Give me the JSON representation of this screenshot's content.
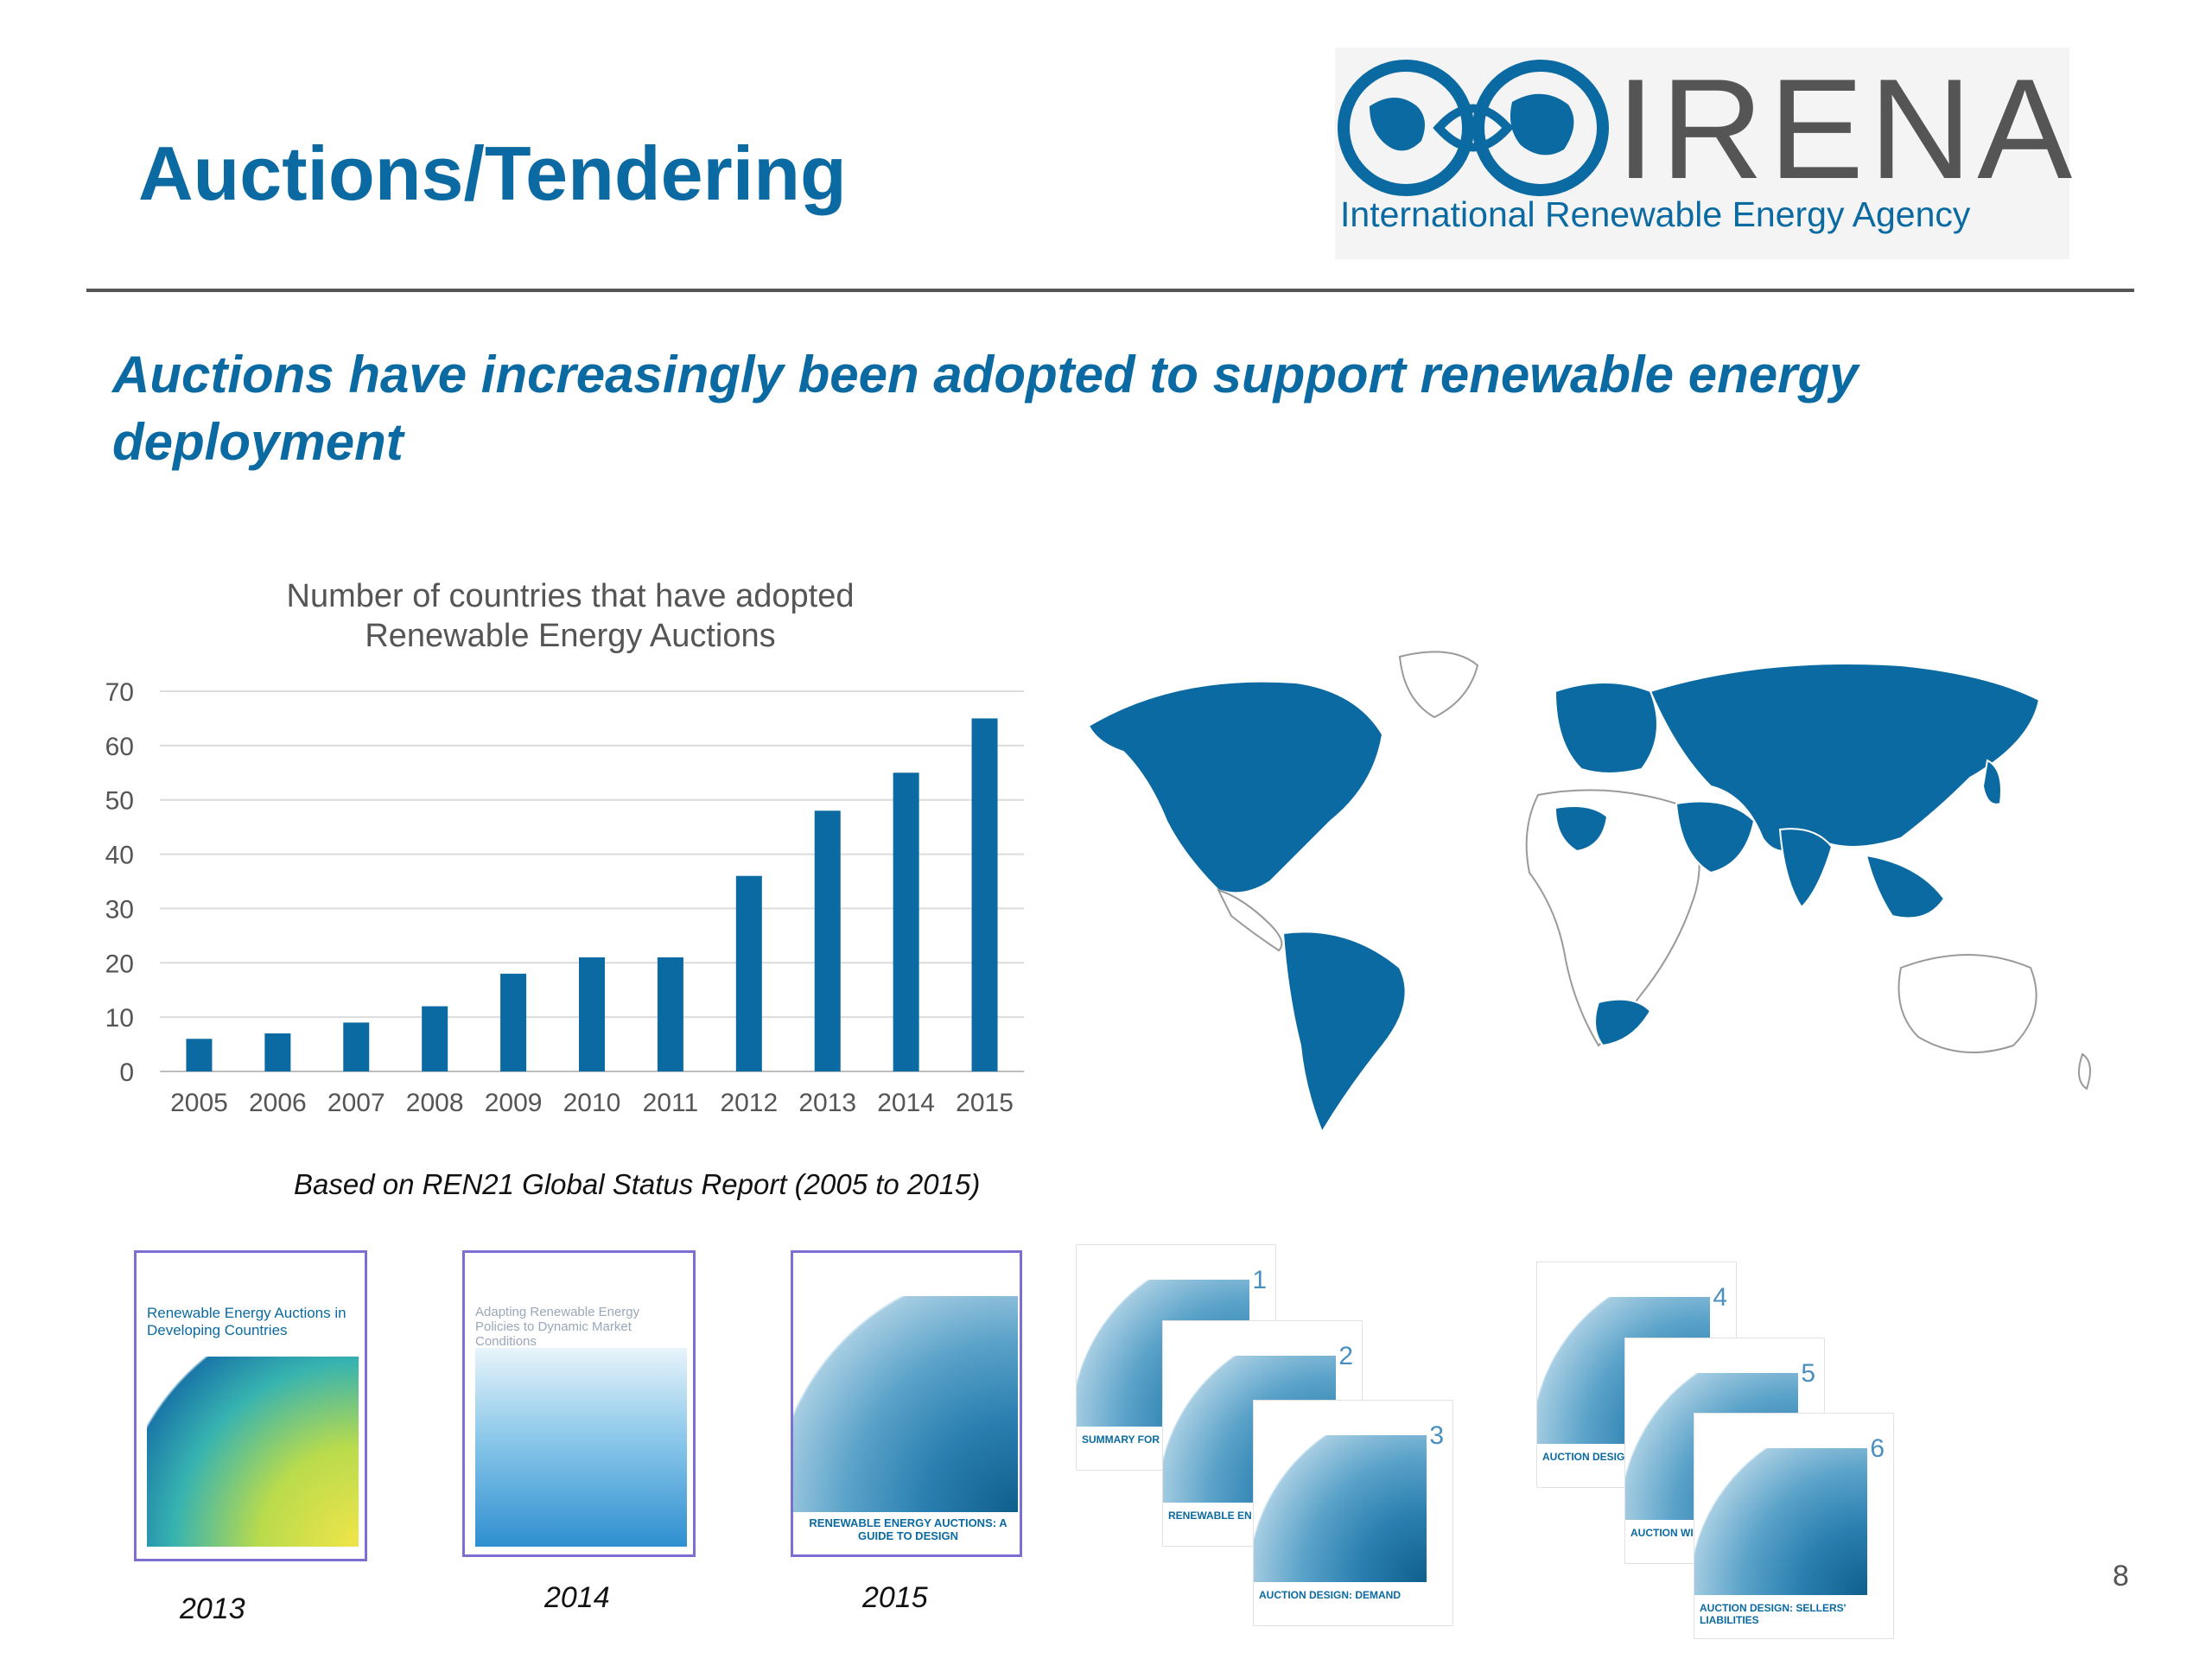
{
  "slide": {
    "title": "Auctions/Tendering",
    "subtitle": "Auctions have increasingly been adopted to support renewable energy deployment",
    "source_note": "Based on REN21 Global Status Report (2005 to 2015)",
    "page_number": "8"
  },
  "logo": {
    "name": "IRENA",
    "tagline": "International Renewable Energy Agency",
    "color": "#0a6aa1"
  },
  "colors": {
    "accent": "#0a6aa1",
    "bar": "#0b6aa2",
    "rule": "#555555"
  },
  "chart_data": {
    "type": "bar",
    "title": "Number of countries that have adopted Renewable Energy Auctions",
    "title_lines": [
      "Number of countries that have adopted",
      "Renewable Energy Auctions"
    ],
    "categories": [
      "2005",
      "2006",
      "2007",
      "2008",
      "2009",
      "2010",
      "2011",
      "2012",
      "2013",
      "2014",
      "2015"
    ],
    "values": [
      6,
      7,
      9,
      12,
      18,
      21,
      21,
      36,
      48,
      55,
      65
    ],
    "yticks": [
      0,
      10,
      20,
      30,
      40,
      50,
      60,
      70
    ],
    "ylim": [
      0,
      70
    ],
    "grid": true,
    "xlabel": "",
    "ylabel": ""
  },
  "map": {
    "highlight_color": "#0b6aa2"
  },
  "reports": [
    {
      "year": "2013",
      "cover_title": "Renewable Energy Auctions in Developing Countries"
    },
    {
      "year": "2014",
      "cover_title": "Adapting Renewable Energy Policies to Dynamic Market Conditions"
    },
    {
      "year": "2015",
      "cover_title": "RENEWABLE ENERGY AUCTIONS: A GUIDE TO DESIGN"
    }
  ],
  "series_covers": [
    {
      "number": "1",
      "caption": "SUMMARY FOR"
    },
    {
      "number": "2",
      "caption": "RENEWABLE EN AND AUCTION"
    },
    {
      "number": "3",
      "caption": "AUCTION DESIGN: DEMAND"
    },
    {
      "number": "4",
      "caption": "AUCTION DESIG QUALIFICATION"
    },
    {
      "number": "5",
      "caption": "AUCTION WINNER"
    },
    {
      "number": "6",
      "caption": "AUCTION DESIGN: SELLERS' LIABILITIES"
    }
  ]
}
